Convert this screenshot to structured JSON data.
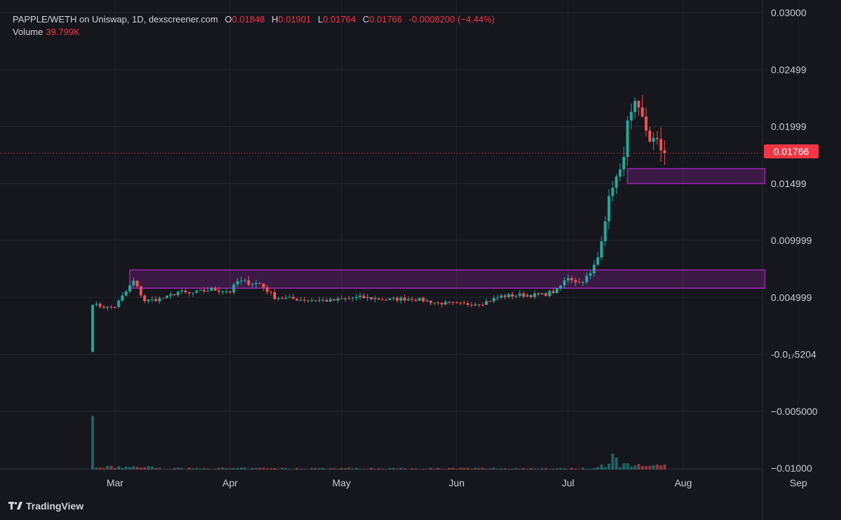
{
  "header": {
    "symbol": "PAPPLE/WETH on Uniswap, 1D, dexscreener.com",
    "o_label": "O",
    "o_value": "0.01848",
    "h_label": "H",
    "h_value": "0.01901",
    "l_label": "L",
    "l_value": "0.01764",
    "c_label": "C",
    "c_value": "0.01766",
    "change": "-0.0008200 (−4.44%)",
    "volume_label": "Volume",
    "volume_value": "39.799K"
  },
  "last_price_tag": "0.01766",
  "branding": "TradingView",
  "colors": {
    "up": "#26a69a",
    "down": "#ef5350",
    "zone": "#9c27b0",
    "background": "#16161d"
  },
  "chart_data": {
    "type": "candlestick",
    "price_axis_labels": [
      "0.03000",
      "0.02499",
      "0.01999",
      "0.01499",
      "0.009999",
      "0.004999",
      "-0.0₁₇5204",
      "−0.005000",
      "−0.01000"
    ],
    "price_axis_values": [
      0.03,
      0.02499,
      0.01999,
      0.01499,
      0.009999,
      0.004999,
      0.0,
      -0.005,
      -0.01
    ],
    "x_tick_labels": [
      "Mar",
      "Apr",
      "May",
      "Jun",
      "Jul",
      "Aug",
      "Sep"
    ],
    "last_price": 0.01766,
    "zones": [
      {
        "from": "Mar 5",
        "to": "Aug 23",
        "low": 0.0058,
        "high": 0.0074
      },
      {
        "from": "Jul 17",
        "to": "Aug 23",
        "low": 0.015,
        "high": 0.0163
      }
    ],
    "waypoints": [
      [
        "Feb 23",
        0.0045
      ],
      [
        "Feb 24",
        0.0043
      ],
      [
        "Feb 27",
        0.0041
      ],
      [
        "Mar 1",
        0.0042
      ],
      [
        "Mar 4",
        0.0055
      ],
      [
        "Mar 6",
        0.0064
      ],
      [
        "Mar 9",
        0.0047
      ],
      [
        "Mar 12",
        0.0048
      ],
      [
        "Mar 15",
        0.005
      ],
      [
        "Mar 18",
        0.0055
      ],
      [
        "Mar 21",
        0.0053
      ],
      [
        "Mar 27",
        0.0057
      ],
      [
        "Apr 1",
        0.0055
      ],
      [
        "Apr 3",
        0.0064
      ],
      [
        "Apr 6",
        0.0063
      ],
      [
        "Apr 9",
        0.0062
      ],
      [
        "Apr 13",
        0.005
      ],
      [
        "Apr 20",
        0.0048
      ],
      [
        "Apr 28",
        0.0047
      ],
      [
        "May 6",
        0.005
      ],
      [
        "May 13",
        0.0048
      ],
      [
        "May 20",
        0.0049
      ],
      [
        "May 27",
        0.0045
      ],
      [
        "Jun 3",
        0.0044
      ],
      [
        "Jun 8",
        0.0045
      ],
      [
        "Jun 13",
        0.0051
      ],
      [
        "Jun 18",
        0.0052
      ],
      [
        "Jun 24",
        0.0052
      ],
      [
        "Jun 28",
        0.0056
      ],
      [
        "Jul 1",
        0.0068
      ],
      [
        "Jul 4",
        0.0063
      ],
      [
        "Jul 7",
        0.007
      ],
      [
        "Jul 9",
        0.0085
      ],
      [
        "Jul 11",
        0.012
      ],
      [
        "Jul 13",
        0.015
      ],
      [
        "Jul 15",
        0.0158
      ],
      [
        "Jul 17",
        0.02
      ],
      [
        "Jul 19",
        0.0215
      ],
      [
        "Jul 21",
        0.0205
      ],
      [
        "Jul 23",
        0.019
      ],
      [
        "Jul 25",
        0.0184
      ],
      [
        "Jul 27",
        0.01766
      ]
    ],
    "volume_spikes": [
      {
        "date": "Feb 23",
        "volume_fraction": 0.98
      },
      {
        "date": "Jul 13",
        "volume_fraction": 0.29
      },
      {
        "date": "Jul 14",
        "volume_fraction": 0.22
      }
    ]
  }
}
